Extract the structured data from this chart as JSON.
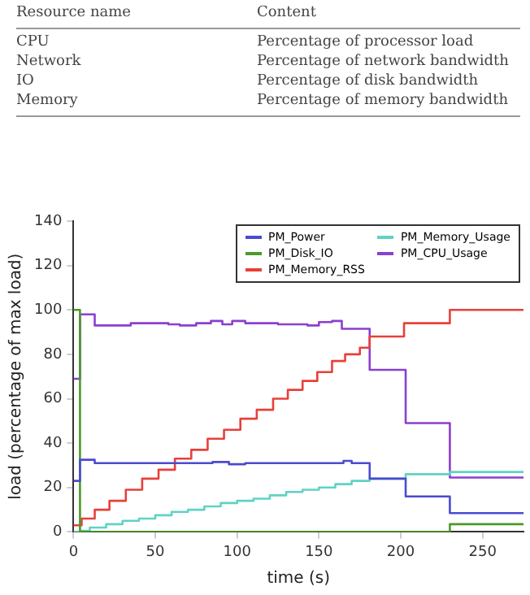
{
  "chart_data": [
    {
      "type": "other",
      "annotations": [
        "Resource name",
        "Content",
        "CPU",
        "Percentage of processor load",
        "Network",
        "Percentage of network bandwidth",
        "IO",
        "Percentage of disk bandwidth",
        "Memory",
        "Percentage of memory bandwidth"
      ]
    },
    {
      "type": "step",
      "xlabel": "time (s)",
      "ylabel": "load (percentage of max load)",
      "xlim": [
        0,
        275
      ],
      "xticks": [
        0,
        50,
        100,
        150,
        200,
        250
      ],
      "ylim": [
        0,
        140
      ],
      "yticks": [
        0,
        20,
        40,
        60,
        80,
        100,
        120,
        140
      ],
      "grid": false,
      "legend": "top right",
      "marker": "none",
      "line_style": "solid",
      "series": [
        {
          "name": "PM_Power",
          "color": "#4b4bd0",
          "x": [
            0,
            4,
            13,
            85,
            95,
            105,
            165,
            170,
            181,
            203,
            230,
            275
          ],
          "values": [
            23,
            32.5,
            31,
            31.5,
            30.5,
            31,
            32,
            31,
            24,
            16,
            8.5,
            8.5
          ]
        },
        {
          "name": "PM_Disk_IO",
          "color": "#4c9a2a",
          "x": [
            0,
            4,
            230,
            275
          ],
          "values": [
            100,
            0,
            3.5,
            3.5
          ]
        },
        {
          "name": "PM_Memory_RSS",
          "color": "#e8403a",
          "x": [
            0,
            5,
            13,
            22,
            32,
            42,
            52,
            62,
            72,
            82,
            92,
            102,
            112,
            122,
            131,
            140,
            149,
            158,
            166,
            175,
            181,
            202,
            230,
            275
          ],
          "values": [
            3,
            6,
            10,
            14,
            19,
            24,
            28,
            33,
            37,
            42,
            46,
            51,
            55,
            60,
            64,
            68,
            72,
            77,
            80,
            83,
            88,
            94,
            100,
            100
          ]
        },
        {
          "name": "PM_Memory_Usage",
          "color": "#5fd3c3",
          "x": [
            0,
            4,
            10,
            20,
            30,
            40,
            50,
            60,
            70,
            80,
            90,
            100,
            110,
            120,
            130,
            140,
            150,
            160,
            170,
            181,
            203,
            230,
            275
          ],
          "values": [
            0,
            0.5,
            2,
            3.5,
            5,
            6,
            7.5,
            9,
            10,
            11.5,
            13,
            14,
            15,
            16.5,
            18,
            19,
            20,
            21.5,
            23,
            24,
            26,
            27,
            27
          ]
        },
        {
          "name": "PM_CPU_Usage",
          "color": "#8a3fd0",
          "x": [
            0,
            4,
            13,
            35,
            58,
            65,
            75,
            84,
            91,
            97,
            105,
            125,
            143,
            150,
            158,
            164,
            181,
            203,
            230,
            275
          ],
          "values": [
            69,
            98,
            93,
            94,
            93.5,
            93,
            94,
            95,
            93.5,
            95,
            94,
            93.5,
            93,
            94.5,
            95,
            91.5,
            73,
            49,
            24.5,
            24.5
          ]
        }
      ]
    }
  ]
}
